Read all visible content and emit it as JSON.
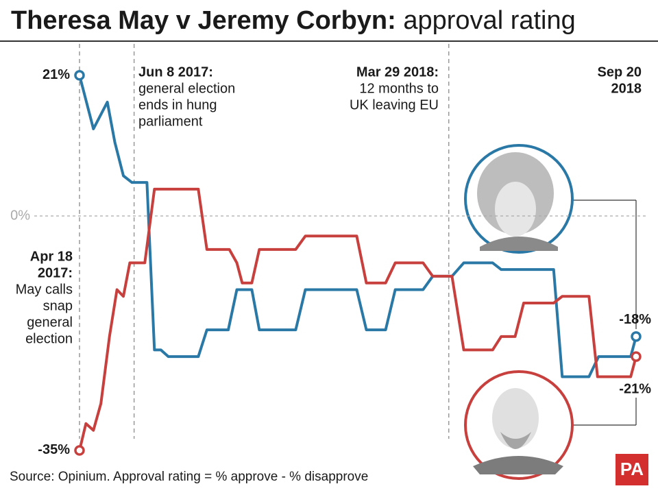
{
  "chart_data": {
    "type": "line",
    "title": "Theresa May v Jeremy Corbyn:",
    "title_suffix": " approval rating",
    "source": "Source: Opinium.  Approval rating =  % approve -  % disapprove",
    "logo": "PA",
    "xlim": [
      0,
      520
    ],
    "ylim": [
      -39,
      25
    ],
    "yticks": [
      {
        "value": 0,
        "label": "0%"
      }
    ],
    "grid": true,
    "annotations": [
      {
        "x": 0,
        "dashed_line": true,
        "date": [
          "Apr 18",
          "2017:"
        ],
        "text": [
          "May calls",
          "snap",
          "general",
          "election"
        ]
      },
      {
        "x": 51,
        "dashed_line": true,
        "date": [
          "Jun 8 2017:"
        ],
        "text": [
          "general election",
          "ends in hung",
          "parliament"
        ]
      },
      {
        "x": 345,
        "dashed_line": true,
        "date": [
          "Mar 29 2018:"
        ],
        "text": [
          "12 months to",
          "UK leaving EU"
        ]
      },
      {
        "x": 520,
        "dashed_line": false,
        "date": [
          "Sep 20",
          "2018"
        ],
        "text": []
      }
    ],
    "series": [
      {
        "color": "#2a78a6",
        "x": [
          0,
          13,
          26,
          33,
          41,
          49,
          63,
          70,
          76,
          83,
          111,
          119,
          139,
          147,
          161,
          168,
          202,
          211,
          259,
          268,
          286,
          295,
          321,
          330,
          348,
          359,
          386,
          394,
          443,
          451,
          476,
          485,
          515,
          520
        ],
        "values": [
          21,
          13,
          17,
          11,
          6,
          5,
          5,
          -20,
          -20,
          -21,
          -21,
          -17,
          -17,
          -11,
          -11,
          -17,
          -17,
          -11,
          -11,
          -17,
          -17,
          -11,
          -11,
          -9,
          -9,
          -7,
          -7,
          -8,
          -8,
          -24,
          -24,
          -21,
          -21,
          -18
        ],
        "value_labels": [
          "21%",
          null,
          null,
          null,
          null,
          null,
          null,
          null,
          null,
          null,
          null,
          null,
          null,
          null,
          null,
          null,
          null,
          null,
          null,
          null,
          null,
          null,
          null,
          null,
          null,
          null,
          null,
          null,
          null,
          null,
          null,
          null,
          null,
          "-18%"
        ]
      },
      {
        "color": "#c8403e",
        "x": [
          0,
          6,
          13,
          20,
          28,
          35,
          41,
          47,
          61,
          70,
          111,
          119,
          140,
          147,
          152,
          161,
          168,
          202,
          211,
          259,
          268,
          286,
          295,
          321,
          330,
          348,
          359,
          386,
          394,
          407,
          415,
          443,
          451,
          476,
          484,
          515,
          520
        ],
        "values": [
          -35,
          -31,
          -32,
          -28,
          -18,
          -11,
          -12,
          -7,
          -7,
          4,
          4,
          -5,
          -5,
          -7,
          -10,
          -10,
          -5,
          -5,
          -3,
          -3,
          -10,
          -10,
          -7,
          -7,
          -9,
          -9,
          -20,
          -20,
          -18,
          -18,
          -13,
          -13,
          -12,
          -12,
          -24,
          -24,
          -21
        ],
        "value_labels": [
          "-35%",
          null,
          null,
          null,
          null,
          null,
          null,
          null,
          null,
          null,
          null,
          null,
          null,
          null,
          null,
          null,
          null,
          null,
          null,
          null,
          null,
          null,
          null,
          null,
          null,
          null,
          null,
          null,
          null,
          null,
          null,
          null,
          null,
          null,
          null,
          null,
          "-21%"
        ]
      }
    ]
  }
}
